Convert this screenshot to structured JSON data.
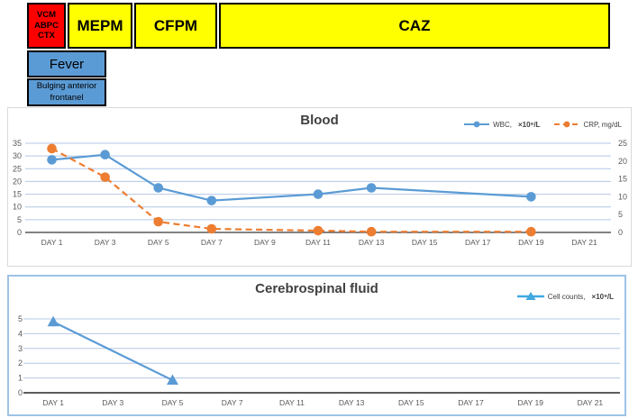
{
  "bars": {
    "vcm": {
      "label": "VCM\nABPC\nCTX",
      "color": "#ff0000"
    },
    "mepm": {
      "label": "MEPM",
      "color": "#ffff00"
    },
    "cfpm": {
      "label": "CFPM",
      "color": "#ffff00"
    },
    "caz": {
      "label": "CAZ",
      "color": "#ffff00"
    },
    "fever": {
      "label": "Fever",
      "color": "#5b9bd5"
    },
    "fontanel": {
      "label": "Bulging anterior\nfrontanel",
      "color": "#5b9bd5"
    }
  },
  "chart_data": [
    {
      "id": "blood",
      "type": "line",
      "title": "Blood",
      "categories": [
        "DAY 1",
        "DAY 3",
        "DAY 5",
        "DAY 7",
        "DAY 9",
        "DAY 11",
        "DAY 13",
        "DAY 15",
        "DAY 17",
        "DAY 19",
        "DAY 21"
      ],
      "left_axis": {
        "min": 0,
        "max": 35,
        "step": 5,
        "ticks": [
          35,
          30,
          25,
          20,
          15,
          10,
          5,
          0
        ]
      },
      "right_axis": {
        "min": 0,
        "max": 25,
        "step": 5,
        "ticks": [
          25,
          20,
          15,
          10,
          5,
          0
        ]
      },
      "grid_color": "#b4c7e7",
      "axis_color": "#595959",
      "legend_position": "top-right",
      "series": [
        {
          "name": "WBC,",
          "unit": "×10⁹/L",
          "axis": "left",
          "color": "#5b9bd5",
          "marker": "circle",
          "dashed": false,
          "values": [
            28.5,
            30.5,
            17.5,
            12.5,
            null,
            15,
            17.5,
            null,
            null,
            14,
            null
          ]
        },
        {
          "name": "CRP, mg/dL",
          "unit": "",
          "axis": "right",
          "color": "#ed7d31",
          "marker": "circle",
          "dashed": true,
          "values": [
            23.5,
            15.5,
            3,
            1,
            null,
            0.5,
            0.2,
            null,
            null,
            0.2,
            null
          ]
        }
      ]
    },
    {
      "id": "csf",
      "type": "line",
      "title": "Cerebrospinal fluid",
      "categories": [
        "DAY 1",
        "DAY 3",
        "DAY 5",
        "DAY 7",
        "DAY 11",
        "DAY 13",
        "DAY 15",
        "DAY 17",
        "DAY 19",
        "DAY 21"
      ],
      "left_axis": {
        "min": 0,
        "max": 5,
        "step": 1,
        "ticks": [
          5,
          4,
          3,
          2,
          1,
          0
        ]
      },
      "grid_color": "#b4c7e7",
      "axis_color": "#262626",
      "legend_position": "top-right",
      "series": [
        {
          "name": "Cell counts,",
          "unit": "×10⁹/L",
          "axis": "left",
          "color": "#5b9bd5",
          "marker": "triangle",
          "dashed": false,
          "values": [
            4.8,
            null,
            0.85,
            null,
            null,
            null,
            null,
            null,
            null,
            null
          ]
        }
      ]
    }
  ]
}
